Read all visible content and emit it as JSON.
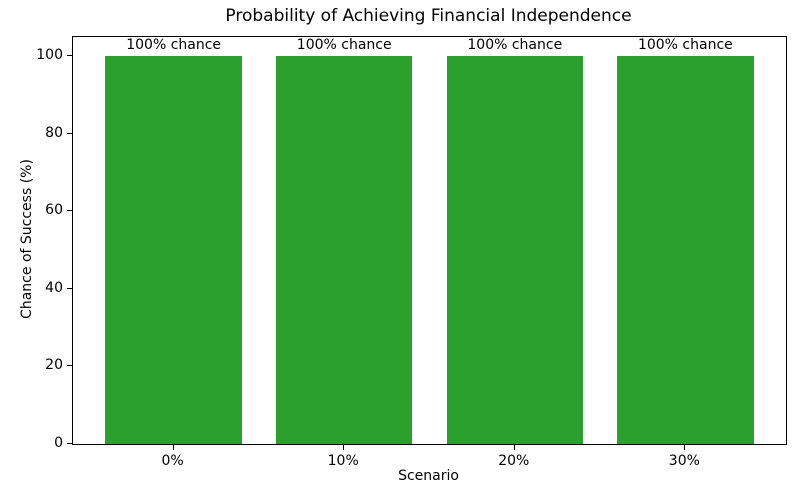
{
  "chart_data": {
    "type": "bar",
    "title": "Probability of Achieving Financial Independence",
    "xlabel": "Scenario",
    "ylabel": "Chance of Success (%)",
    "categories": [
      "0%",
      "10%",
      "20%",
      "30%"
    ],
    "values": [
      100,
      100,
      100,
      100
    ],
    "bar_labels": [
      "100% chance",
      "100% chance",
      "100% chance",
      "100% chance"
    ],
    "yticks": [
      0,
      20,
      40,
      60,
      80,
      100
    ],
    "ylim": [
      0,
      105
    ],
    "bar_width_units": 0.8,
    "grid": false,
    "legend": "none",
    "colors": {
      "bar": "#2ca02c",
      "text": "#000000",
      "spine": "#000000",
      "background": "#ffffff"
    }
  }
}
